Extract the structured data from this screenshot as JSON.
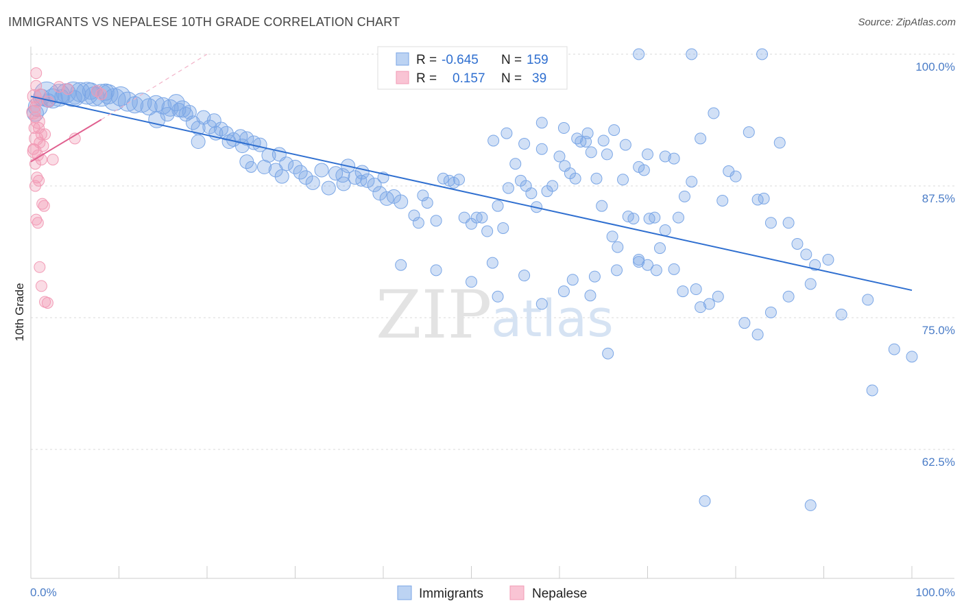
{
  "title": "IMMIGRANTS VS NEPALESE 10TH GRADE CORRELATION CHART",
  "source": "Source: ZipAtlas.com",
  "watermark": {
    "zip": "ZIP",
    "atlas": "atlas"
  },
  "colors": {
    "blue": "#7aa6e6",
    "blue_line": "#2f6fd0",
    "pink": "#f29ab5",
    "pink_line": "#e0608f"
  },
  "legend": {
    "rows": [
      {
        "r_label": "R =",
        "r_value": "-0.645",
        "n_label": "N =",
        "n_value": "159"
      },
      {
        "r_label": "R =",
        "r_value": "0.157",
        "n_label": "N =",
        "n_value": "39"
      }
    ]
  },
  "bottom_legend": [
    "Immigrants",
    "Nepalese"
  ],
  "chart_data": {
    "type": "scatter",
    "xlabel": "",
    "ylabel": "10th Grade",
    "x_tick_labels": [
      "0.0%",
      "100.0%"
    ],
    "y_tick_labels": [
      "100.0%",
      "87.5%",
      "75.0%",
      "62.5%"
    ],
    "xlim": [
      0,
      100
    ],
    "ylim": [
      50,
      101
    ],
    "grid": true,
    "legend_position": "top-center",
    "series": [
      {
        "name": "Immigrants",
        "color": "#7aa6e6",
        "trend": {
          "x0": 0,
          "y0": 96.0,
          "x1": 100,
          "y1": 77.6
        },
        "points": [
          [
            0.8,
            95.0,
            14
          ],
          [
            1.2,
            95.9,
            12
          ],
          [
            1.8,
            96.2,
            18
          ],
          [
            2.5,
            95.8,
            14
          ],
          [
            3.2,
            96.1,
            16
          ],
          [
            4.0,
            96.3,
            14
          ],
          [
            4.8,
            96.2,
            18
          ],
          [
            5.6,
            96.4,
            14
          ],
          [
            6.4,
            96.3,
            16
          ],
          [
            7.2,
            96.0,
            14
          ],
          [
            8.0,
            96.1,
            16
          ],
          [
            8.8,
            96.2,
            14
          ],
          [
            9.5,
            95.7,
            16
          ],
          [
            10.2,
            96.0,
            14
          ],
          [
            11.0,
            95.5,
            14
          ],
          [
            11.8,
            95.2,
            12
          ],
          [
            12.6,
            95.4,
            14
          ],
          [
            13.4,
            95.0,
            12
          ],
          [
            14.2,
            95.3,
            12
          ],
          [
            15.0,
            95.1,
            12
          ],
          [
            15.8,
            94.9,
            12
          ],
          [
            16.5,
            95.4,
            12
          ],
          [
            17.2,
            94.8,
            12
          ],
          [
            18.0,
            94.5,
            10
          ],
          [
            0.5,
            94.4,
            12
          ],
          [
            2.0,
            95.6,
            10
          ],
          [
            3.5,
            96.0,
            10
          ],
          [
            5.0,
            95.9,
            10
          ],
          [
            6.8,
            96.5,
            12
          ],
          [
            8.5,
            96.4,
            12
          ],
          [
            14.3,
            93.8,
            12
          ],
          [
            15.5,
            94.3,
            10
          ],
          [
            16.8,
            94.7,
            10
          ],
          [
            17.6,
            94.3,
            10
          ],
          [
            18.4,
            93.5,
            10
          ],
          [
            19.0,
            93.0,
            10
          ],
          [
            19.6,
            94.0,
            10
          ],
          [
            20.3,
            93.1,
            10
          ],
          [
            21.0,
            92.5,
            10
          ],
          [
            21.6,
            92.9,
            10
          ],
          [
            22.2,
            92.5,
            10
          ],
          [
            23.0,
            91.9,
            10
          ],
          [
            23.8,
            92.2,
            10
          ],
          [
            24.5,
            92.0,
            10
          ],
          [
            25.3,
            91.6,
            10
          ],
          [
            26.0,
            91.4,
            10
          ],
          [
            19.0,
            91.7,
            10
          ],
          [
            20.8,
            93.7,
            10
          ],
          [
            22.5,
            91.7,
            10
          ],
          [
            24.0,
            91.3,
            10
          ],
          [
            27.0,
            90.4,
            10
          ],
          [
            28.2,
            90.5,
            10
          ],
          [
            29.0,
            89.6,
            10
          ],
          [
            24.5,
            89.8,
            10
          ],
          [
            26.5,
            89.3,
            10
          ],
          [
            27.8,
            89.0,
            10
          ],
          [
            28.5,
            88.4,
            10
          ],
          [
            30.0,
            89.3,
            10
          ],
          [
            30.6,
            88.8,
            10
          ],
          [
            31.2,
            88.3,
            10
          ],
          [
            32.0,
            87.8,
            10
          ],
          [
            33.0,
            89.0,
            10
          ],
          [
            33.8,
            87.3,
            10
          ],
          [
            34.6,
            88.7,
            10
          ],
          [
            35.4,
            88.5,
            10
          ],
          [
            36.0,
            89.4,
            10
          ],
          [
            36.8,
            88.3,
            10
          ],
          [
            37.6,
            88.8,
            10
          ],
          [
            38.2,
            88.0,
            10
          ],
          [
            39.0,
            87.6,
            10
          ],
          [
            39.6,
            86.8,
            10
          ],
          [
            40.4,
            86.3,
            10
          ],
          [
            41.2,
            86.5,
            10
          ],
          [
            42.0,
            86.0,
            10
          ],
          [
            25.0,
            89.3,
            8
          ],
          [
            35.5,
            87.7,
            10
          ],
          [
            37.5,
            88.0,
            8
          ],
          [
            40.0,
            88.3,
            8
          ],
          [
            43.5,
            84.7,
            8
          ],
          [
            44.0,
            84.0,
            8
          ],
          [
            44.5,
            86.6,
            8
          ],
          [
            45.0,
            85.9,
            8
          ],
          [
            46.0,
            84.2,
            8
          ],
          [
            46.8,
            88.2,
            8
          ],
          [
            47.5,
            88.0,
            8
          ],
          [
            48.0,
            87.8,
            8
          ],
          [
            48.6,
            88.1,
            8
          ],
          [
            49.2,
            84.5,
            8
          ],
          [
            50.0,
            83.9,
            8
          ],
          [
            50.6,
            84.5,
            8
          ],
          [
            51.2,
            84.5,
            8
          ],
          [
            51.8,
            83.2,
            8
          ],
          [
            52.4,
            80.2,
            8
          ],
          [
            53.0,
            85.6,
            8
          ],
          [
            53.6,
            83.5,
            8
          ],
          [
            54.2,
            87.3,
            8
          ],
          [
            55.0,
            89.6,
            8
          ],
          [
            55.6,
            88.0,
            8
          ],
          [
            56.2,
            87.5,
            8
          ],
          [
            56.8,
            86.8,
            8
          ],
          [
            57.4,
            85.5,
            8
          ],
          [
            58.0,
            91.0,
            8
          ],
          [
            58.6,
            87.0,
            8
          ],
          [
            59.2,
            87.5,
            8
          ],
          [
            60.0,
            90.3,
            8
          ],
          [
            60.6,
            89.4,
            8
          ],
          [
            61.2,
            88.7,
            8
          ],
          [
            61.8,
            88.2,
            8
          ],
          [
            62.4,
            91.7,
            8
          ],
          [
            63.0,
            91.7,
            8
          ],
          [
            63.6,
            90.7,
            8
          ],
          [
            64.2,
            88.2,
            8
          ],
          [
            64.8,
            85.6,
            8
          ],
          [
            65.4,
            90.5,
            8
          ],
          [
            66.0,
            82.7,
            8
          ],
          [
            66.6,
            81.7,
            8
          ],
          [
            67.2,
            88.1,
            8
          ],
          [
            67.8,
            84.6,
            8
          ],
          [
            68.4,
            84.4,
            8
          ],
          [
            69.0,
            80.5,
            8
          ],
          [
            69.6,
            89.0,
            8
          ],
          [
            70.2,
            84.4,
            8
          ],
          [
            70.8,
            84.5,
            8
          ],
          [
            71.4,
            81.6,
            8
          ],
          [
            72.0,
            83.3,
            8
          ],
          [
            73.0,
            90.1,
            8
          ],
          [
            74.2,
            86.5,
            8
          ],
          [
            52.5,
            91.8,
            8
          ],
          [
            54.0,
            92.5,
            8
          ],
          [
            56.0,
            91.5,
            8
          ],
          [
            58.0,
            93.5,
            8
          ],
          [
            60.5,
            93.0,
            8
          ],
          [
            62.0,
            92.0,
            8
          ],
          [
            63.2,
            92.5,
            8
          ],
          [
            65.0,
            91.8,
            8
          ],
          [
            66.2,
            92.8,
            8
          ],
          [
            67.5,
            91.4,
            8
          ],
          [
            69.0,
            89.3,
            8
          ],
          [
            70.0,
            90.5,
            8
          ],
          [
            72.0,
            90.3,
            8
          ],
          [
            73.5,
            84.5,
            8
          ],
          [
            75.0,
            87.9,
            8
          ],
          [
            76.0,
            92.0,
            8
          ],
          [
            77.5,
            94.4,
            8
          ],
          [
            78.5,
            86.1,
            8
          ],
          [
            79.2,
            88.9,
            8
          ],
          [
            80.0,
            88.4,
            8
          ],
          [
            81.5,
            92.6,
            8
          ],
          [
            82.5,
            86.2,
            8
          ],
          [
            83.2,
            86.3,
            8
          ],
          [
            84.0,
            84.0,
            8
          ],
          [
            85.0,
            91.6,
            8
          ],
          [
            86.0,
            84.0,
            8
          ],
          [
            87.0,
            82.0,
            8
          ],
          [
            88.0,
            81.0,
            8
          ],
          [
            89.0,
            80.0,
            8
          ],
          [
            90.5,
            80.5,
            8
          ],
          [
            42.0,
            80.0,
            8
          ],
          [
            46.0,
            79.5,
            8
          ],
          [
            50.0,
            78.4,
            8
          ],
          [
            53.0,
            77.0,
            8
          ],
          [
            56.0,
            79.0,
            8
          ],
          [
            60.5,
            77.5,
            8
          ],
          [
            64.0,
            78.9,
            8
          ],
          [
            66.5,
            79.5,
            8
          ],
          [
            70.0,
            80.0,
            8
          ],
          [
            73.0,
            79.6,
            8
          ],
          [
            75.5,
            77.7,
            8
          ],
          [
            78.0,
            77.0,
            8
          ],
          [
            81.0,
            74.5,
            8
          ],
          [
            82.5,
            73.4,
            8
          ],
          [
            84.0,
            75.5,
            8
          ],
          [
            86.0,
            77.0,
            8
          ],
          [
            88.5,
            78.2,
            8
          ],
          [
            58.0,
            76.3,
            8
          ],
          [
            61.5,
            78.6,
            8
          ],
          [
            63.5,
            77.1,
            8
          ],
          [
            65.5,
            71.6,
            8
          ],
          [
            69.0,
            80.3,
            8
          ],
          [
            71.0,
            79.5,
            8
          ],
          [
            74.0,
            77.5,
            8
          ],
          [
            76.0,
            76.0,
            8
          ],
          [
            77.0,
            76.3,
            8
          ],
          [
            92.0,
            75.3,
            8
          ],
          [
            95.0,
            76.7,
            8
          ],
          [
            98.0,
            72.0,
            8
          ],
          [
            100.0,
            71.3,
            8
          ],
          [
            95.5,
            68.1,
            8
          ],
          [
            69.0,
            100.0,
            8
          ],
          [
            75.0,
            100.0,
            8
          ],
          [
            83.0,
            100.0,
            8
          ],
          [
            76.5,
            57.6,
            8
          ],
          [
            88.5,
            57.2,
            8
          ]
        ]
      },
      {
        "name": "Nepalese",
        "color": "#f29ab5",
        "trend": {
          "x0": 0,
          "y0": 89.8,
          "x1": 8.0,
          "y1": 93.8
        },
        "dashed_extension": {
          "x0": 8.0,
          "y0": 93.8,
          "x1": 20.0,
          "y1": 100.0
        },
        "points": [
          [
            0.6,
            97.0,
            8
          ],
          [
            0.4,
            96.0,
            10
          ],
          [
            0.7,
            95.5,
            8
          ],
          [
            0.3,
            94.5,
            10
          ],
          [
            0.5,
            94.0,
            8
          ],
          [
            0.8,
            93.6,
            10
          ],
          [
            0.4,
            93.0,
            8
          ],
          [
            1.2,
            92.4,
            8
          ],
          [
            1.6,
            92.4,
            8
          ],
          [
            0.6,
            92.0,
            10
          ],
          [
            1.0,
            91.6,
            8
          ],
          [
            1.4,
            91.3,
            8
          ],
          [
            0.4,
            90.8,
            10
          ],
          [
            0.8,
            90.4,
            8
          ],
          [
            1.2,
            90.0,
            8
          ],
          [
            0.5,
            89.6,
            8
          ],
          [
            2.5,
            90.0,
            8
          ],
          [
            0.7,
            88.3,
            8
          ],
          [
            0.9,
            88.0,
            8
          ],
          [
            0.5,
            87.5,
            8
          ],
          [
            1.3,
            85.8,
            8
          ],
          [
            1.5,
            85.6,
            8
          ],
          [
            0.6,
            84.3,
            8
          ],
          [
            0.8,
            84.0,
            8
          ],
          [
            1.0,
            79.8,
            8
          ],
          [
            1.2,
            78.0,
            8
          ],
          [
            1.6,
            76.5,
            8
          ],
          [
            1.9,
            76.4,
            8
          ],
          [
            0.6,
            98.2,
            8
          ],
          [
            3.2,
            96.9,
            8
          ],
          [
            4.2,
            96.7,
            8
          ],
          [
            7.5,
            96.5,
            8
          ],
          [
            8.0,
            96.2,
            8
          ],
          [
            5.0,
            92.0,
            8
          ],
          [
            0.3,
            91.0,
            8
          ],
          [
            0.5,
            95.0,
            8
          ],
          [
            2.0,
            95.5,
            8
          ],
          [
            0.9,
            93.0,
            8
          ],
          [
            1.1,
            96.2,
            8
          ]
        ]
      }
    ]
  }
}
